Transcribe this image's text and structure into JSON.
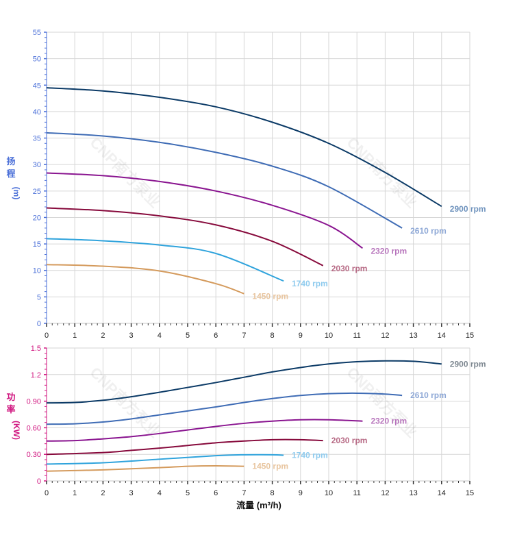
{
  "chart_data": [
    {
      "type": "line",
      "ylabel_chars": [
        "扬",
        "程"
      ],
      "ylabel_unit": "(m)",
      "xlim": [
        0,
        15
      ],
      "ylim": [
        0,
        55
      ],
      "xticks": [
        0,
        1,
        2,
        3,
        4,
        5,
        6,
        7,
        8,
        9,
        10,
        11,
        12,
        13,
        14,
        15
      ],
      "yticks": [
        "0",
        "5",
        "10",
        "15",
        "20",
        "25",
        "30",
        "35",
        "40",
        "45",
        "50",
        "55"
      ],
      "grid": true,
      "axis_color": "#4a6fd8",
      "series": [
        {
          "name": "2900 rpm",
          "color": "#0b3a66",
          "label_color": "#6f93bd",
          "points": [
            [
              0,
              44.5
            ],
            [
              2,
              43.9
            ],
            [
              4,
              42.7
            ],
            [
              6,
              40.9
            ],
            [
              8,
              38.0
            ],
            [
              10,
              34.0
            ],
            [
              12,
              28.5
            ],
            [
              14,
              22.1
            ]
          ]
        },
        {
          "name": "2610 rpm",
          "color": "#3f6cb5",
          "label_color": "#8ea8d6",
          "points": [
            [
              0,
              36.0
            ],
            [
              2,
              35.4
            ],
            [
              4,
              34.2
            ],
            [
              6,
              32.3
            ],
            [
              8,
              29.7
            ],
            [
              10,
              25.8
            ],
            [
              12.6,
              18.0
            ]
          ]
        },
        {
          "name": "2320 rpm",
          "color": "#8a1590",
          "label_color": "#b775bc",
          "points": [
            [
              0,
              28.4
            ],
            [
              2,
              27.9
            ],
            [
              4,
              26.8
            ],
            [
              6,
              25.0
            ],
            [
              8,
              22.3
            ],
            [
              10,
              18.5
            ],
            [
              11.2,
              14.2
            ]
          ]
        },
        {
          "name": "2030 rpm",
          "color": "#870a3c",
          "label_color": "#b76a85",
          "points": [
            [
              0,
              21.8
            ],
            [
              2,
              21.3
            ],
            [
              4,
              20.3
            ],
            [
              6,
              18.6
            ],
            [
              8,
              15.5
            ],
            [
              9.8,
              10.9
            ]
          ]
        },
        {
          "name": "1740 rpm",
          "color": "#2fa3dc",
          "label_color": "#8fcbee",
          "points": [
            [
              0,
              16.0
            ],
            [
              2,
              15.6
            ],
            [
              4,
              14.8
            ],
            [
              6,
              13.2
            ],
            [
              8.4,
              8.0
            ]
          ]
        },
        {
          "name": "1450 rpm",
          "color": "#d49a5c",
          "label_color": "#e8c59f",
          "points": [
            [
              0,
              11.1
            ],
            [
              2,
              10.8
            ],
            [
              4,
              9.9
            ],
            [
              6,
              7.5
            ],
            [
              7,
              5.6
            ]
          ]
        }
      ]
    },
    {
      "type": "line",
      "ylabel_chars": [
        "功",
        "率"
      ],
      "ylabel_unit": "(KW)",
      "xlabel": "流量 (m³/h)",
      "xlim": [
        0,
        15
      ],
      "ylim": [
        0,
        1.5
      ],
      "xticks": [
        0,
        1,
        2,
        3,
        4,
        5,
        6,
        7,
        8,
        9,
        10,
        11,
        12,
        13,
        14,
        15
      ],
      "yticks": [
        "0",
        "0.30",
        "0.60",
        "0.90",
        "1.2",
        "1.5"
      ],
      "grid": true,
      "axis_color": "#d0147f",
      "series": [
        {
          "name": "2900 rpm",
          "color": "#0b3a66",
          "label_color": "#7d8790",
          "points": [
            [
              0,
              0.88
            ],
            [
              1,
              0.885
            ],
            [
              2,
              0.91
            ],
            [
              3,
              0.95
            ],
            [
              4,
              1.0
            ],
            [
              5,
              1.055
            ],
            [
              6,
              1.11
            ],
            [
              7,
              1.17
            ],
            [
              8,
              1.23
            ],
            [
              9,
              1.28
            ],
            [
              10,
              1.32
            ],
            [
              11,
              1.345
            ],
            [
              12,
              1.355
            ],
            [
              13,
              1.35
            ],
            [
              14,
              1.32
            ]
          ]
        },
        {
          "name": "2610 rpm",
          "color": "#3f6cb5",
          "label_color": "#8ea8d6",
          "points": [
            [
              0,
              0.64
            ],
            [
              1,
              0.645
            ],
            [
              2,
              0.665
            ],
            [
              3,
              0.7
            ],
            [
              4,
              0.745
            ],
            [
              5,
              0.79
            ],
            [
              6,
              0.835
            ],
            [
              7,
              0.885
            ],
            [
              8,
              0.93
            ],
            [
              9,
              0.965
            ],
            [
              10,
              0.985
            ],
            [
              11,
              0.99
            ],
            [
              12,
              0.98
            ],
            [
              12.6,
              0.965
            ]
          ]
        },
        {
          "name": "2320 rpm",
          "color": "#8a1590",
          "label_color": "#b775bc",
          "points": [
            [
              0,
              0.45
            ],
            [
              1,
              0.455
            ],
            [
              2,
              0.475
            ],
            [
              3,
              0.5
            ],
            [
              4,
              0.535
            ],
            [
              5,
              0.575
            ],
            [
              6,
              0.615
            ],
            [
              7,
              0.65
            ],
            [
              8,
              0.675
            ],
            [
              9,
              0.69
            ],
            [
              10,
              0.69
            ],
            [
              11.2,
              0.675
            ]
          ]
        },
        {
          "name": "2030 rpm",
          "color": "#870a3c",
          "label_color": "#b76a85",
          "points": [
            [
              0,
              0.3
            ],
            [
              2,
              0.32
            ],
            [
              3,
              0.345
            ],
            [
              4,
              0.37
            ],
            [
              5,
              0.4
            ],
            [
              6,
              0.43
            ],
            [
              7,
              0.45
            ],
            [
              8,
              0.465
            ],
            [
              9,
              0.465
            ],
            [
              9.8,
              0.455
            ]
          ]
        },
        {
          "name": "1740 rpm",
          "color": "#2fa3dc",
          "label_color": "#8fcbee",
          "points": [
            [
              0,
              0.19
            ],
            [
              2,
              0.205
            ],
            [
              4,
              0.245
            ],
            [
              6,
              0.285
            ],
            [
              7,
              0.295
            ],
            [
              8,
              0.295
            ],
            [
              8.4,
              0.29
            ]
          ]
        },
        {
          "name": "1450 rpm",
          "color": "#d49a5c",
          "label_color": "#e8c59f",
          "points": [
            [
              0,
              0.11
            ],
            [
              2,
              0.125
            ],
            [
              4,
              0.15
            ],
            [
              5,
              0.165
            ],
            [
              6,
              0.17
            ],
            [
              7,
              0.165
            ]
          ]
        }
      ]
    }
  ],
  "watermark": "CNP南方泵业"
}
